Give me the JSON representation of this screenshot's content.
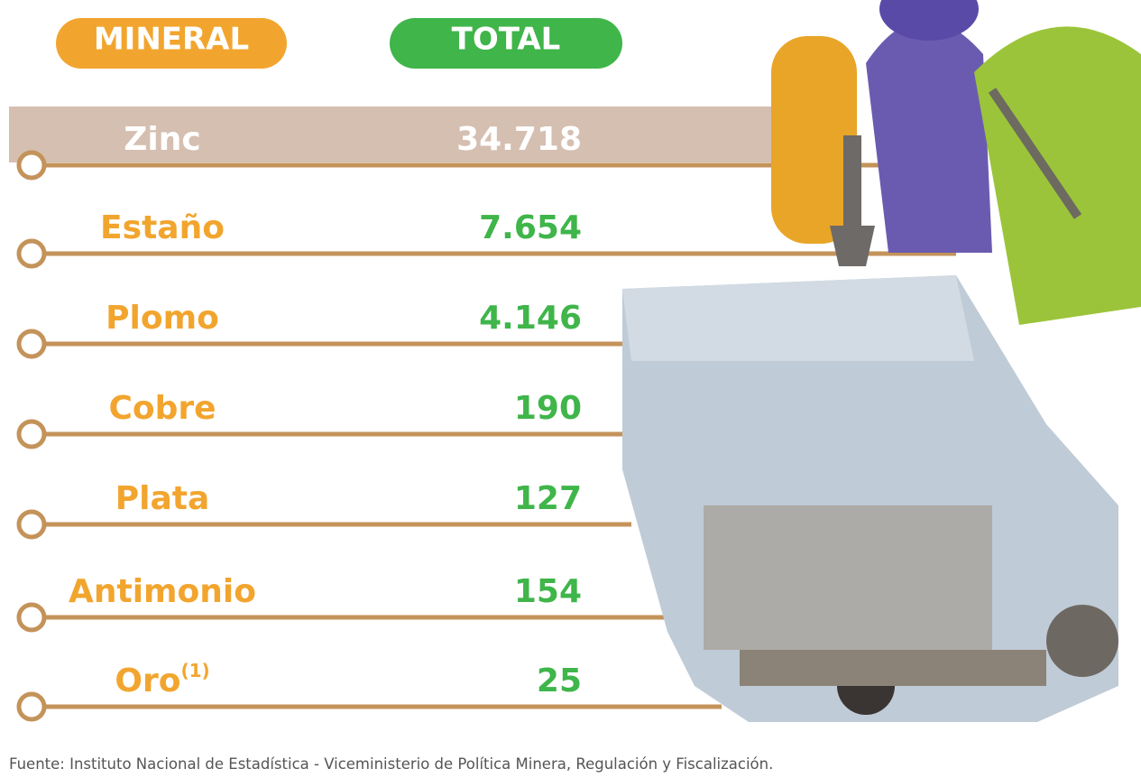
{
  "header": {
    "mineral": "MINERAL",
    "total": "TOTAL"
  },
  "table": {
    "rows": [
      {
        "mineral": "Zinc",
        "total": "34.718"
      },
      {
        "mineral": "Estaño",
        "total": "7.654"
      },
      {
        "mineral": "Plomo",
        "total": "4.146"
      },
      {
        "mineral": "Cobre",
        "total": "190"
      },
      {
        "mineral": "Plata",
        "total": "127"
      },
      {
        "mineral": "Antimonio",
        "total": "154"
      },
      {
        "mineral": "Oro",
        "note": "(1)",
        "total": "25"
      }
    ]
  },
  "source": "Fuente: Instituto Nacional de Estadística - Viceministerio de Política Minera, Regulación y Fiscalización."
}
